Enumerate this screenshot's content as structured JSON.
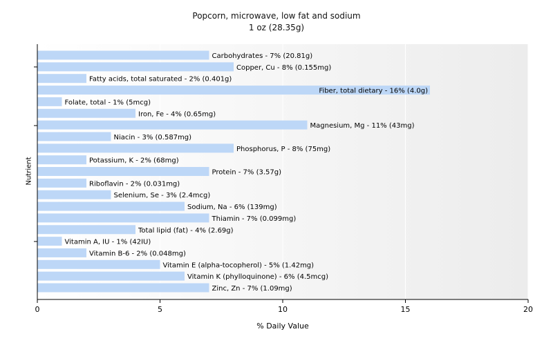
{
  "chart_data": {
    "type": "bar",
    "orientation": "horizontal",
    "title": "Popcorn, microwave, low fat and sodium",
    "subtitle": "1 oz (28.35g)",
    "xlabel": "% Daily Value",
    "ylabel": "Nutrient",
    "xlim": [
      0,
      20
    ],
    "xticks": [
      0,
      5,
      10,
      15,
      20
    ],
    "grid": false,
    "bar_color": "#bdd7f7",
    "categories": [
      "Carbohydrates",
      "Copper, Cu",
      "Fatty acids, total saturated",
      "Fiber, total dietary",
      "Folate, total",
      "Iron, Fe",
      "Magnesium, Mg",
      "Niacin",
      "Phosphorus, P",
      "Potassium, K",
      "Protein",
      "Riboflavin",
      "Selenium, Se",
      "Sodium, Na",
      "Thiamin",
      "Total lipid (fat)",
      "Vitamin A, IU",
      "Vitamin B-6",
      "Vitamin E (alpha-tocopherol)",
      "Vitamin K (phylloquinone)",
      "Zinc, Zn"
    ],
    "values": [
      7,
      8,
      2,
      16,
      1,
      4,
      11,
      3,
      8,
      2,
      7,
      2,
      3,
      6,
      7,
      4,
      1,
      2,
      5,
      6,
      7
    ],
    "labels": [
      "Carbohydrates - 7% (20.81g)",
      "Copper, Cu - 8% (0.155mg)",
      "Fatty acids, total saturated - 2% (0.401g)",
      "Fiber, total dietary - 16% (4.0g)",
      "Folate, total - 1% (5mcg)",
      "Iron, Fe - 4% (0.65mg)",
      "Magnesium, Mg - 11% (43mg)",
      "Niacin - 3% (0.587mg)",
      "Phosphorus, P - 8% (75mg)",
      "Potassium, K - 2% (68mg)",
      "Protein - 7% (3.57g)",
      "Riboflavin - 2% (0.031mg)",
      "Selenium, Se - 3% (2.4mcg)",
      "Sodium, Na - 6% (139mg)",
      "Thiamin - 7% (0.099mg)",
      "Total lipid (fat) - 4% (2.69g)",
      "Vitamin A, IU - 1% (42IU)",
      "Vitamin B-6 - 2% (0.048mg)",
      "Vitamin E (alpha-tocopherol) - 5% (1.42mg)",
      "Vitamin K (phylloquinone) - 6% (4.5mcg)",
      "Zinc, Zn - 7% (1.09mg)"
    ]
  }
}
